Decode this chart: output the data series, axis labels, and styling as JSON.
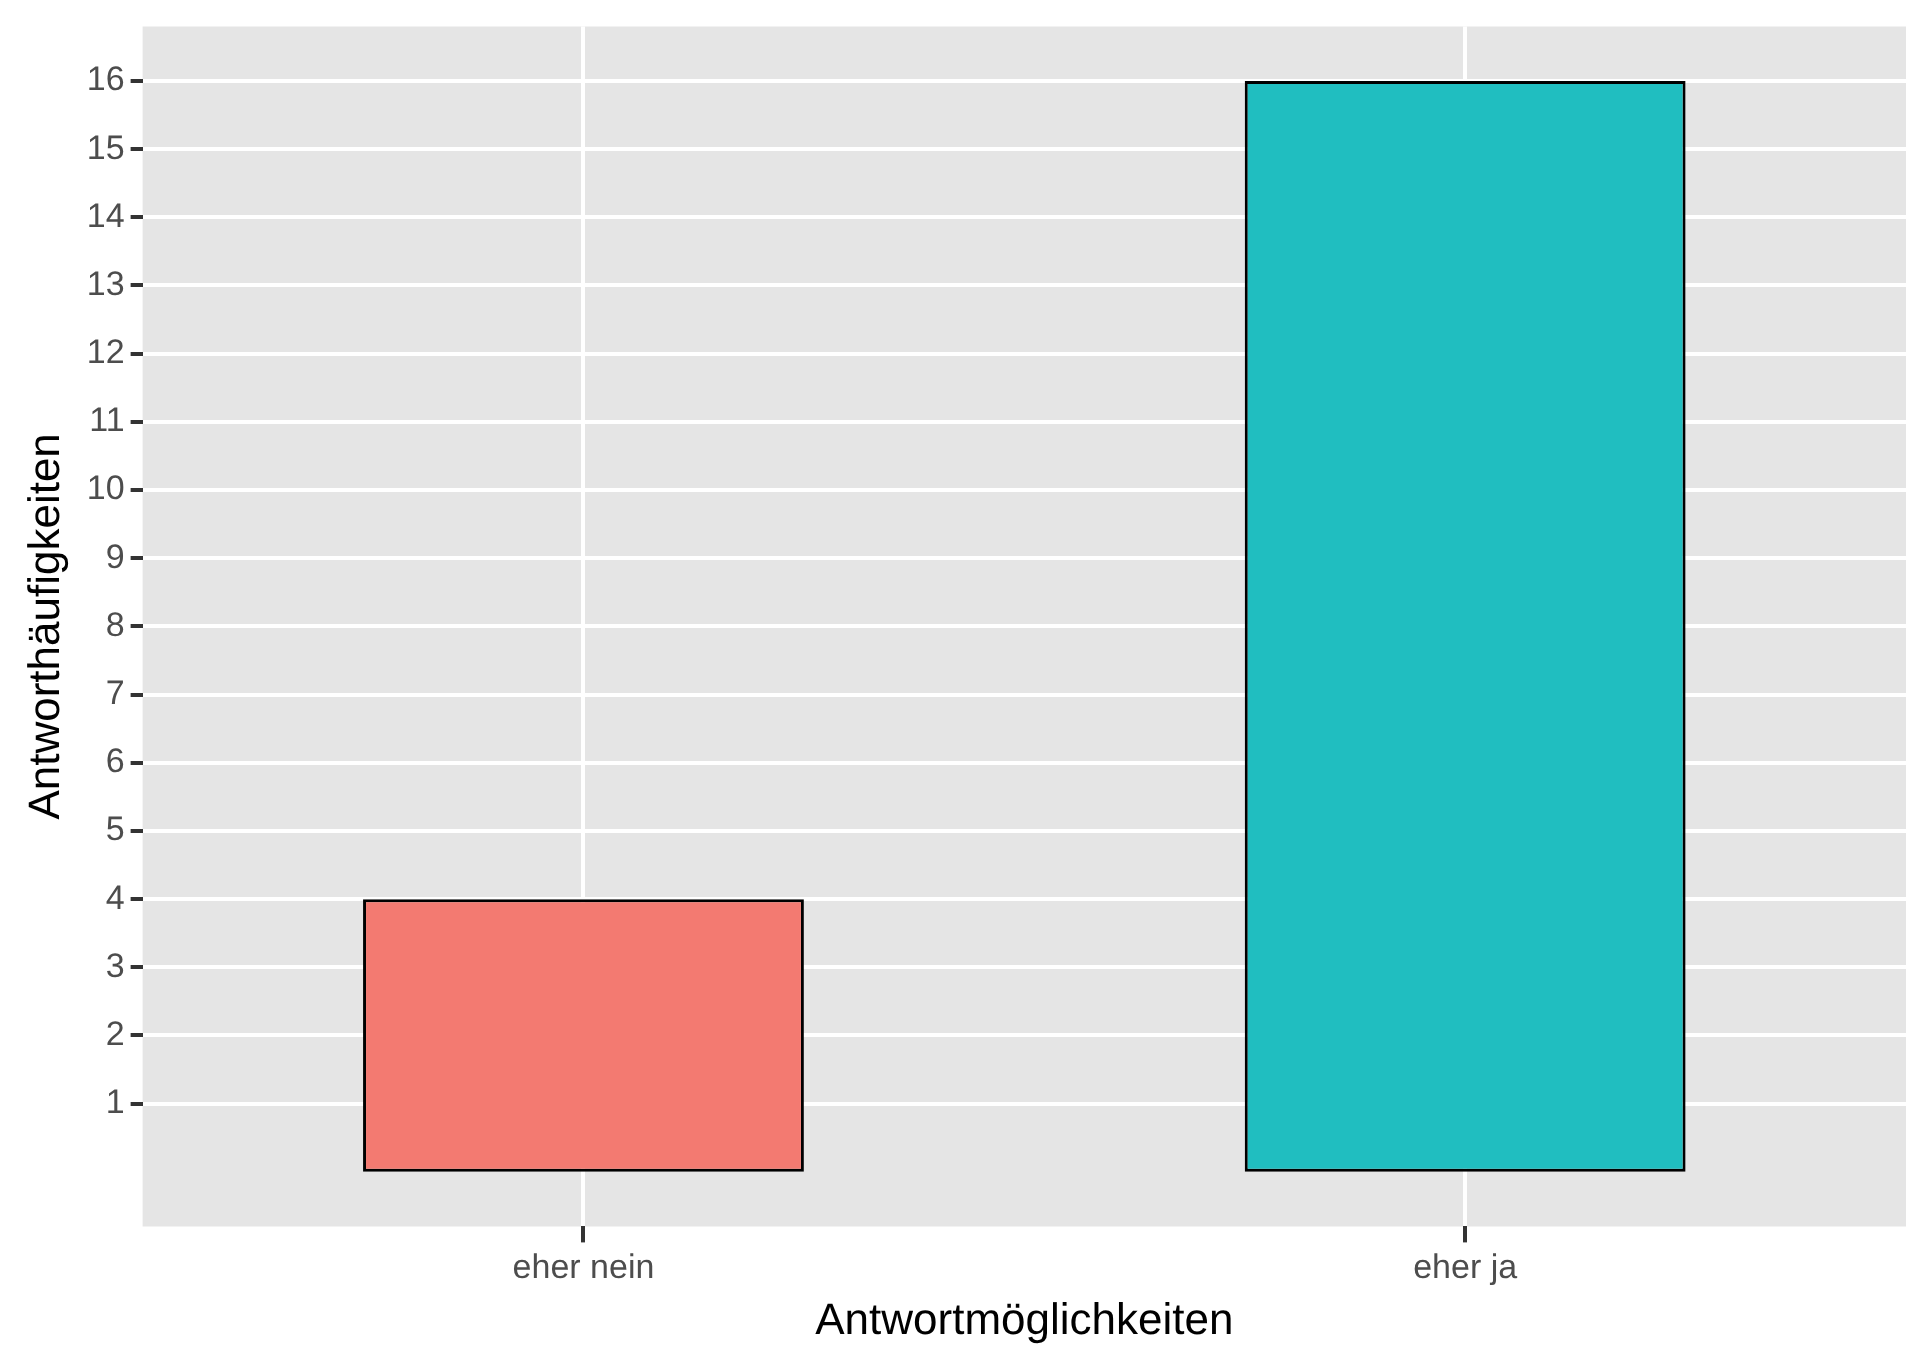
{
  "chart_data": {
    "type": "bar",
    "xlabel": "Antwortmöglichkeiten",
    "ylabel": "Antworthäufigkeiten",
    "categories": [
      "eher nein",
      "eher ja"
    ],
    "values": [
      4,
      16
    ],
    "colors": [
      "#f37a71",
      "#20bec0"
    ],
    "ylim": [
      -0.8,
      16.8
    ],
    "yticks": [
      1,
      2,
      3,
      4,
      5,
      6,
      7,
      8,
      9,
      10,
      11,
      12,
      13,
      14,
      15,
      16
    ],
    "grid": true
  }
}
